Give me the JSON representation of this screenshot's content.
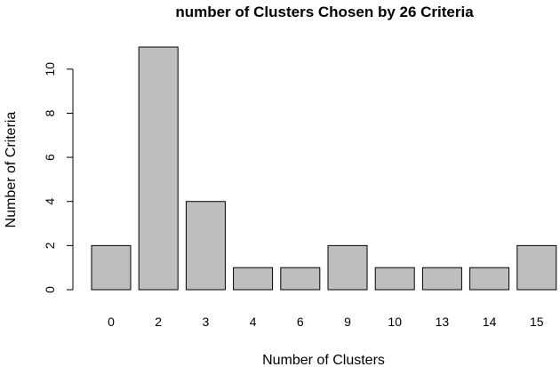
{
  "chart_data": {
    "type": "bar",
    "title": "number of Clusters Chosen by 26 Criteria",
    "xlabel": "Number of Clusters",
    "ylabel": "Number of Criteria",
    "categories": [
      "0",
      "2",
      "3",
      "4",
      "6",
      "9",
      "10",
      "13",
      "14",
      "15"
    ],
    "values": [
      2,
      11,
      4,
      1,
      1,
      2,
      1,
      1,
      1,
      2
    ],
    "ylim": [
      0,
      11
    ],
    "yticks": [
      "0",
      "2",
      "4",
      "6",
      "8",
      "10"
    ],
    "grid": false,
    "bar_color": "#bebebe",
    "bar_edge_color": "#000000"
  }
}
